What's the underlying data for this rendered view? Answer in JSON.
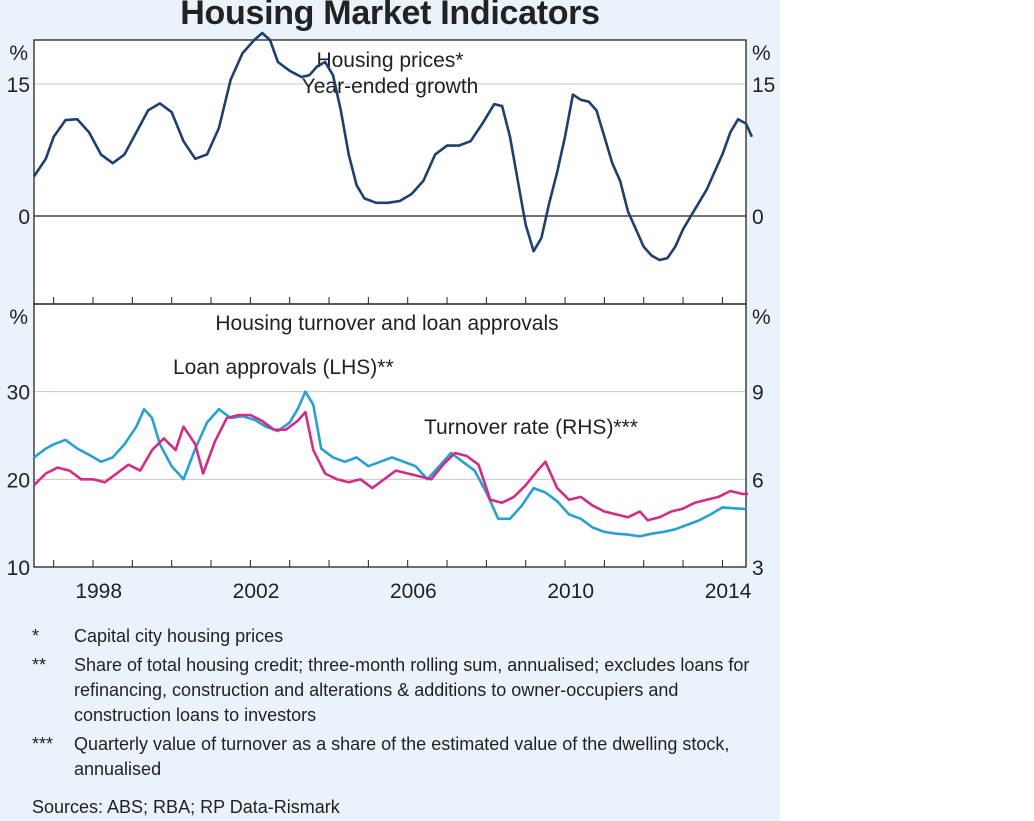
{
  "title": "Housing Market Indicators",
  "chart_data": [
    {
      "type": "line",
      "title": "Housing prices*",
      "subtitle": "Year-ended growth",
      "ylabel_left": "%",
      "ylabel_right": "%",
      "ylim": [
        -10,
        20
      ],
      "yticks": [
        0,
        15
      ],
      "xlim": [
        1996.5,
        2014.6
      ],
      "xticks": [
        1998,
        2002,
        2006,
        2010,
        2014
      ],
      "grid": true,
      "series": [
        {
          "name": "",
          "color": "#1f3f6e",
          "points": [
            [
              1996.5,
              4.5
            ],
            [
              1996.8,
              6.5
            ],
            [
              1997.0,
              9.0
            ],
            [
              1997.3,
              10.9
            ],
            [
              1997.6,
              11.0
            ],
            [
              1997.9,
              9.5
            ],
            [
              1998.2,
              7.0
            ],
            [
              1998.5,
              6.0
            ],
            [
              1998.8,
              7.0
            ],
            [
              1999.1,
              9.5
            ],
            [
              1999.4,
              12.0
            ],
            [
              1999.7,
              12.8
            ],
            [
              2000.0,
              11.8
            ],
            [
              2000.3,
              8.5
            ],
            [
              2000.6,
              6.5
            ],
            [
              2000.9,
              7.0
            ],
            [
              2001.2,
              10.0
            ],
            [
              2001.5,
              15.5
            ],
            [
              2001.8,
              18.5
            ],
            [
              2002.1,
              20.0
            ],
            [
              2002.3,
              20.8
            ],
            [
              2002.5,
              20.0
            ],
            [
              2002.7,
              17.5
            ],
            [
              2003.0,
              16.5
            ],
            [
              2003.3,
              15.8
            ],
            [
              2003.5,
              16.0
            ],
            [
              2003.7,
              17.0
            ],
            [
              2003.9,
              17.5
            ],
            [
              2004.1,
              16.0
            ],
            [
              2004.3,
              12.0
            ],
            [
              2004.5,
              7.0
            ],
            [
              2004.7,
              3.5
            ],
            [
              2004.9,
              2.0
            ],
            [
              2005.2,
              1.5
            ],
            [
              2005.5,
              1.5
            ],
            [
              2005.8,
              1.7
            ],
            [
              2006.1,
              2.5
            ],
            [
              2006.4,
              4.0
            ],
            [
              2006.7,
              7.0
            ],
            [
              2007.0,
              8.0
            ],
            [
              2007.3,
              8.0
            ],
            [
              2007.6,
              8.5
            ],
            [
              2007.9,
              10.5
            ],
            [
              2008.2,
              12.7
            ],
            [
              2008.4,
              12.5
            ],
            [
              2008.6,
              9.0
            ],
            [
              2008.8,
              4.0
            ],
            [
              2009.0,
              -1.0
            ],
            [
              2009.2,
              -4.0
            ],
            [
              2009.4,
              -2.5
            ],
            [
              2009.6,
              1.5
            ],
            [
              2009.8,
              5.0
            ],
            [
              2010.0,
              9.0
            ],
            [
              2010.2,
              13.8
            ],
            [
              2010.4,
              13.2
            ],
            [
              2010.6,
              13.0
            ],
            [
              2010.8,
              12.0
            ],
            [
              2011.0,
              9.0
            ],
            [
              2011.2,
              6.0
            ],
            [
              2011.4,
              4.0
            ],
            [
              2011.6,
              0.5
            ],
            [
              2011.8,
              -1.5
            ],
            [
              2012.0,
              -3.5
            ],
            [
              2012.2,
              -4.5
            ],
            [
              2012.4,
              -5.0
            ],
            [
              2012.6,
              -4.8
            ],
            [
              2012.8,
              -3.5
            ],
            [
              2013.0,
              -1.5
            ],
            [
              2013.2,
              0.0
            ],
            [
              2013.4,
              1.5
            ],
            [
              2013.6,
              3.0
            ],
            [
              2013.8,
              5.0
            ],
            [
              2014.0,
              7.0
            ],
            [
              2014.2,
              9.5
            ],
            [
              2014.4,
              11.0
            ],
            [
              2014.6,
              10.5
            ],
            [
              2014.75,
              9.0
            ]
          ]
        }
      ]
    },
    {
      "type": "line",
      "title": "Housing turnover and loan approvals",
      "ylabel_left": "%",
      "ylabel_right": "%",
      "ylim_left": [
        10,
        40
      ],
      "ylim_right": [
        3,
        12
      ],
      "yticks_left": [
        10,
        20,
        30
      ],
      "yticks_right": [
        3,
        6,
        9
      ],
      "xlim": [
        1996.5,
        2014.6
      ],
      "xticks": [
        1998,
        2002,
        2006,
        2010,
        2014
      ],
      "grid": true,
      "series": [
        {
          "name": "Loan approvals (LHS)**",
          "axis": "left",
          "color": "#2aa0d2",
          "points": [
            [
              1996.5,
              22.5
            ],
            [
              1996.8,
              23.5
            ],
            [
              1997.0,
              24.0
            ],
            [
              1997.3,
              24.5
            ],
            [
              1997.6,
              23.5
            ],
            [
              1997.9,
              22.8
            ],
            [
              1998.2,
              22.0
            ],
            [
              1998.5,
              22.5
            ],
            [
              1998.8,
              24.0
            ],
            [
              1999.1,
              26.0
            ],
            [
              1999.3,
              28.0
            ],
            [
              1999.5,
              27.0
            ],
            [
              1999.7,
              24.0
            ],
            [
              2000.0,
              21.5
            ],
            [
              2000.3,
              20.0
            ],
            [
              2000.6,
              23.5
            ],
            [
              2000.9,
              26.5
            ],
            [
              2001.2,
              28.0
            ],
            [
              2001.5,
              27.0
            ],
            [
              2001.8,
              27.2
            ],
            [
              2002.1,
              26.8
            ],
            [
              2002.4,
              26.0
            ],
            [
              2002.7,
              25.5
            ],
            [
              2003.0,
              26.5
            ],
            [
              2003.2,
              28.0
            ],
            [
              2003.4,
              30.0
            ],
            [
              2003.6,
              28.5
            ],
            [
              2003.8,
              23.5
            ],
            [
              2004.1,
              22.5
            ],
            [
              2004.4,
              22.0
            ],
            [
              2004.7,
              22.5
            ],
            [
              2005.0,
              21.5
            ],
            [
              2005.3,
              22.0
            ],
            [
              2005.6,
              22.5
            ],
            [
              2005.9,
              22.0
            ],
            [
              2006.2,
              21.5
            ],
            [
              2006.5,
              20.0
            ],
            [
              2006.8,
              21.5
            ],
            [
              2007.1,
              23.0
            ],
            [
              2007.4,
              22.0
            ],
            [
              2007.7,
              21.0
            ],
            [
              2008.0,
              18.5
            ],
            [
              2008.3,
              15.5
            ],
            [
              2008.6,
              15.5
            ],
            [
              2008.9,
              17.0
            ],
            [
              2009.2,
              19.0
            ],
            [
              2009.5,
              18.5
            ],
            [
              2009.8,
              17.5
            ],
            [
              2010.1,
              16.0
            ],
            [
              2010.4,
              15.5
            ],
            [
              2010.7,
              14.5
            ],
            [
              2011.0,
              14.0
            ],
            [
              2011.3,
              13.8
            ],
            [
              2011.6,
              13.7
            ],
            [
              2011.9,
              13.5
            ],
            [
              2012.2,
              13.8
            ],
            [
              2012.5,
              14.0
            ],
            [
              2012.8,
              14.3
            ],
            [
              2013.1,
              14.8
            ],
            [
              2013.4,
              15.3
            ],
            [
              2013.7,
              16.0
            ],
            [
              2014.0,
              16.8
            ],
            [
              2014.3,
              16.7
            ],
            [
              2014.6,
              16.6
            ]
          ]
        },
        {
          "name": "Turnover rate (RHS)***",
          "axis": "right",
          "color": "#d42c84",
          "points": [
            [
              1996.5,
              5.8
            ],
            [
              1996.8,
              6.2
            ],
            [
              1997.1,
              6.4
            ],
            [
              1997.4,
              6.3
            ],
            [
              1997.7,
              6.0
            ],
            [
              1998.0,
              6.0
            ],
            [
              1998.3,
              5.9
            ],
            [
              1998.6,
              6.2
            ],
            [
              1998.9,
              6.5
            ],
            [
              1999.2,
              6.3
            ],
            [
              1999.5,
              7.0
            ],
            [
              1999.8,
              7.4
            ],
            [
              2000.1,
              7.0
            ],
            [
              2000.3,
              7.8
            ],
            [
              2000.6,
              7.2
            ],
            [
              2000.8,
              6.2
            ],
            [
              2001.1,
              7.3
            ],
            [
              2001.4,
              8.1
            ],
            [
              2001.7,
              8.2
            ],
            [
              2002.0,
              8.2
            ],
            [
              2002.3,
              8.0
            ],
            [
              2002.6,
              7.7
            ],
            [
              2002.9,
              7.7
            ],
            [
              2003.2,
              8.0
            ],
            [
              2003.4,
              8.3
            ],
            [
              2003.6,
              7.0
            ],
            [
              2003.9,
              6.2
            ],
            [
              2004.2,
              6.0
            ],
            [
              2004.5,
              5.9
            ],
            [
              2004.8,
              6.0
            ],
            [
              2005.1,
              5.7
            ],
            [
              2005.4,
              6.0
            ],
            [
              2005.7,
              6.3
            ],
            [
              2006.0,
              6.2
            ],
            [
              2006.3,
              6.1
            ],
            [
              2006.6,
              6.0
            ],
            [
              2006.9,
              6.5
            ],
            [
              2007.2,
              6.9
            ],
            [
              2007.5,
              6.8
            ],
            [
              2007.8,
              6.5
            ],
            [
              2008.1,
              5.3
            ],
            [
              2008.4,
              5.2
            ],
            [
              2008.7,
              5.4
            ],
            [
              2009.0,
              5.8
            ],
            [
              2009.3,
              6.3
            ],
            [
              2009.5,
              6.6
            ],
            [
              2009.8,
              5.7
            ],
            [
              2010.1,
              5.3
            ],
            [
              2010.4,
              5.4
            ],
            [
              2010.7,
              5.1
            ],
            [
              2011.0,
              4.9
            ],
            [
              2011.3,
              4.8
            ],
            [
              2011.6,
              4.7
            ],
            [
              2011.9,
              4.9
            ],
            [
              2012.1,
              4.6
            ],
            [
              2012.4,
              4.7
            ],
            [
              2012.7,
              4.9
            ],
            [
              2013.0,
              5.0
            ],
            [
              2013.3,
              5.2
            ],
            [
              2013.6,
              5.3
            ],
            [
              2013.9,
              5.4
            ],
            [
              2014.2,
              5.6
            ],
            [
              2014.5,
              5.5
            ],
            [
              2014.65,
              5.5
            ]
          ]
        }
      ]
    }
  ],
  "notes": [
    {
      "mark": "*",
      "text": "Capital city housing prices"
    },
    {
      "mark": "**",
      "text": "Share of total housing credit; three-month rolling sum, annualised; excludes loans for refinancing, construction and alterations & additions to owner-occupiers and construction loans to investors"
    },
    {
      "mark": "***",
      "text": "Quarterly value of turnover as a share of the estimated value of the dwelling stock, annualised"
    }
  ],
  "sources": "Sources:   ABS; RBA; RP Data-Rismark"
}
